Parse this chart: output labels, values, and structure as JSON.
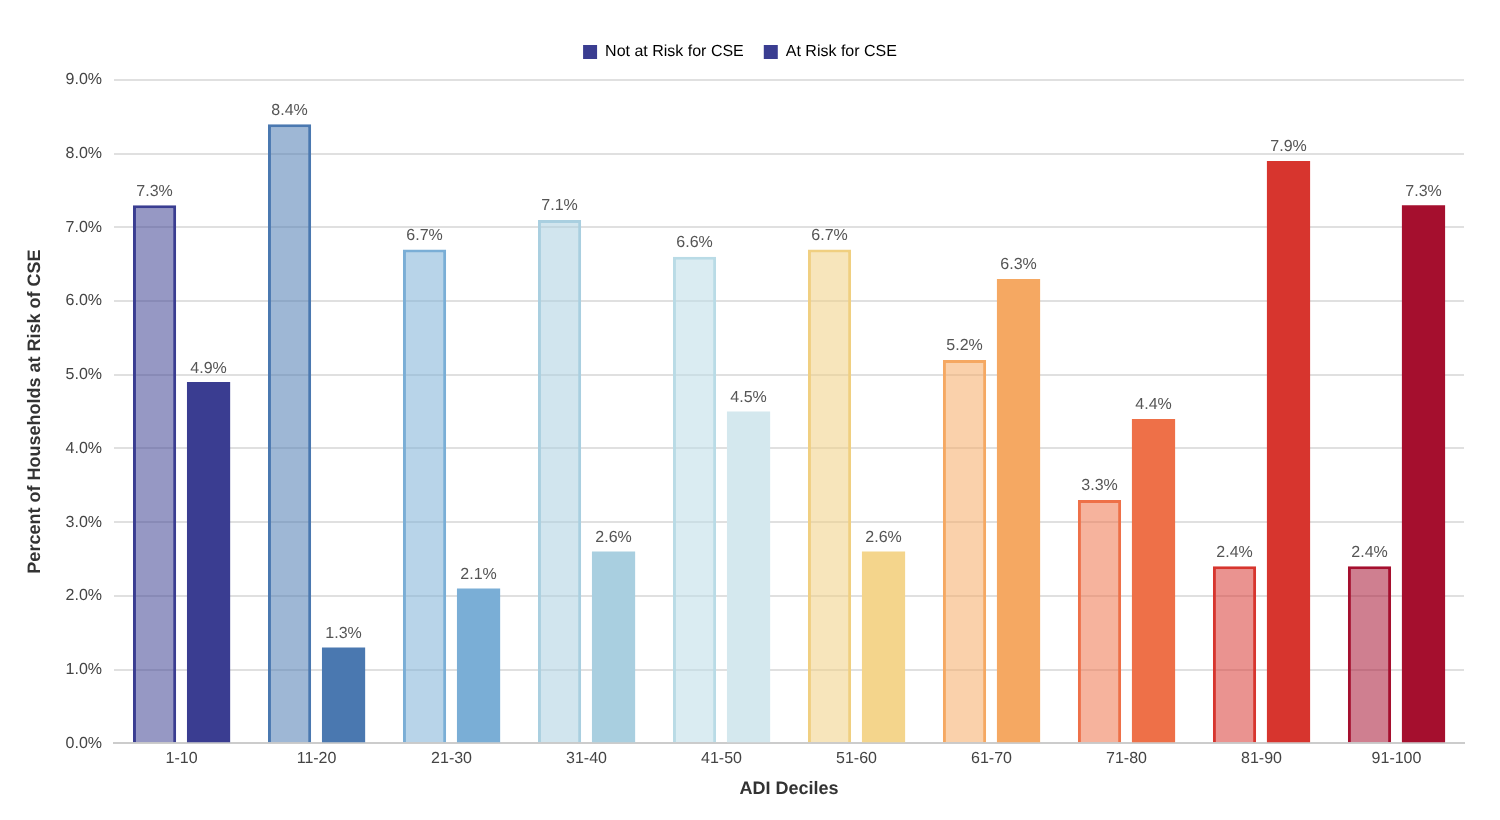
{
  "chart_data": {
    "type": "bar",
    "xlabel": "ADI Deciles",
    "ylabel": "Percent of Households at Risk of CSE",
    "categories": [
      "1-10",
      "11-20",
      "21-30",
      "31-40",
      "41-50",
      "51-60",
      "61-70",
      "71-80",
      "81-90",
      "91-100"
    ],
    "series": [
      {
        "name": "Not at Risk for CSE",
        "values": [
          7.3,
          8.4,
          6.7,
          7.1,
          6.6,
          6.7,
          5.2,
          3.3,
          2.4,
          2.4
        ],
        "value_labels": [
          "7.3%",
          "8.4%",
          "6.7%",
          "7.1%",
          "6.6%",
          "6.7%",
          "5.2%",
          "3.3%",
          "2.4%",
          "2.4%"
        ],
        "colors": [
          "#3a3d91",
          "#4a78b0",
          "#7aaed6",
          "#a9cfe0",
          "#b9dbe6",
          "#f0cf80",
          "#f5a862",
          "#ee7048",
          "#d7352e",
          "#a50f2e"
        ]
      },
      {
        "name": "At Risk for CSE",
        "values": [
          4.9,
          1.3,
          2.1,
          2.6,
          4.5,
          2.6,
          6.3,
          4.4,
          7.9,
          7.3
        ],
        "value_labels": [
          "4.9%",
          "1.3%",
          "2.1%",
          "2.6%",
          "4.5%",
          "2.6%",
          "6.3%",
          "4.4%",
          "7.9%",
          "7.3%"
        ],
        "colors": [
          "#3a3d91",
          "#4a78b0",
          "#7aaed6",
          "#a9cfe0",
          "#d4e8ee",
          "#f4d58c",
          "#f5a862",
          "#ee7048",
          "#d7352e",
          "#a50f2e"
        ]
      }
    ],
    "ylim": [
      0,
      9
    ],
    "yticks": [
      {
        "value": 0,
        "label": "0.0%"
      },
      {
        "value": 1,
        "label": "1.0%"
      },
      {
        "value": 2,
        "label": "2.0%"
      },
      {
        "value": 3,
        "label": "3.0%"
      },
      {
        "value": 4,
        "label": "4.0%"
      },
      {
        "value": 5,
        "label": "5.0%"
      },
      {
        "value": 6,
        "label": "6.0%"
      },
      {
        "value": 7,
        "label": "7.0%"
      },
      {
        "value": 8,
        "label": "8.0%"
      },
      {
        "value": 9,
        "label": "9.0%"
      }
    ],
    "grid": "y",
    "legend": "top"
  }
}
